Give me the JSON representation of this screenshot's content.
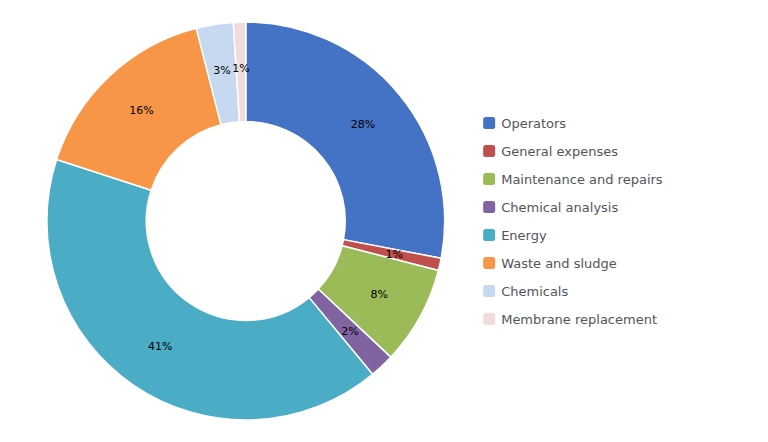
{
  "chart_data": {
    "type": "pie",
    "categories": [
      "Operators",
      "General expenses",
      "Maintenance and repairs",
      "Chemical analysis",
      "Energy",
      "Waste and sludge",
      "Chemicals",
      "Membrane replacement"
    ],
    "values": [
      28,
      1,
      8,
      2,
      41,
      16,
      3,
      1
    ],
    "value_labels": [
      "28%",
      "1%",
      "8%",
      "2%",
      "41%",
      "16%",
      "3%",
      "1%"
    ],
    "colors": [
      "#4472C4",
      "#C0504D",
      "#9BBB59",
      "#8064A2",
      "#4BACC6",
      "#F79646",
      "#C6D9F1",
      "#F2DCDB"
    ],
    "data_labels": true,
    "legend": "right"
  }
}
